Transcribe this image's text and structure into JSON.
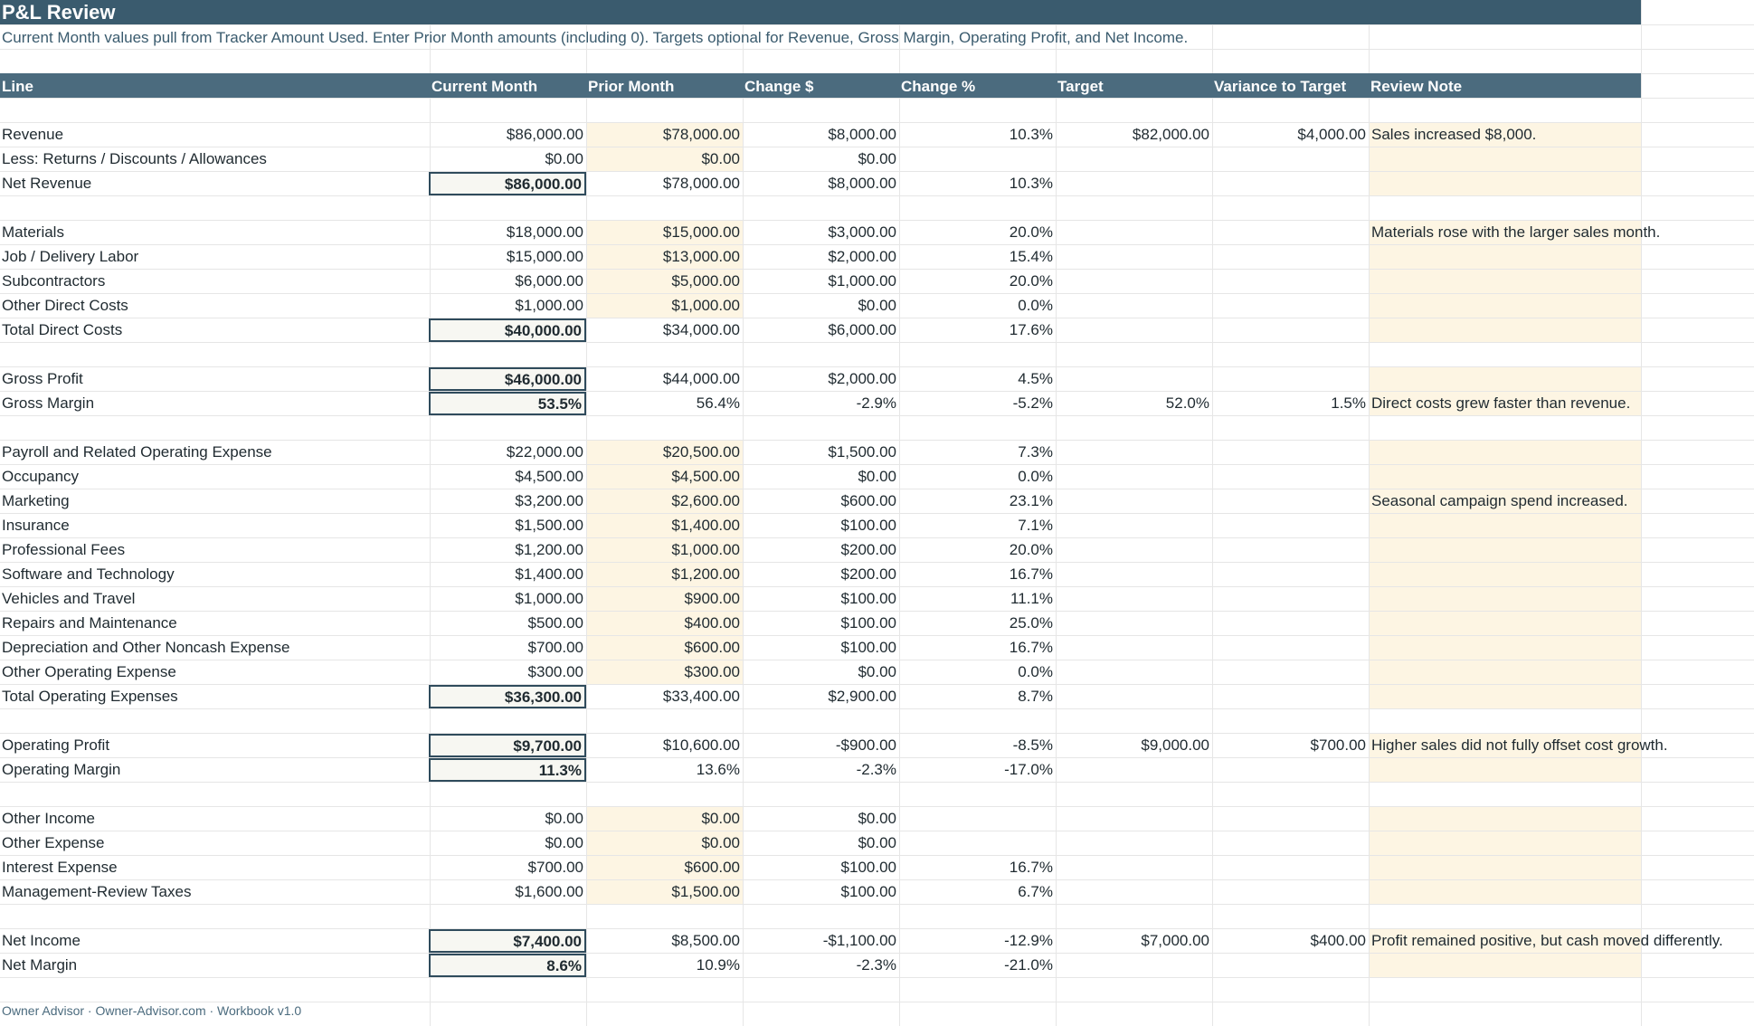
{
  "title": "P&L Review",
  "subtitle": "Current Month values pull from Tracker Amount Used. Enter Prior Month amounts (including 0). Targets optional for Revenue, Gross Margin, Operating Profit, and Net Income.",
  "headers": [
    "Line",
    "Current Month",
    "Prior Month",
    "Change $",
    "Change %",
    "Target",
    "Variance to Target",
    "Review Note"
  ],
  "rows": [
    {
      "row": 5,
      "label": "Revenue",
      "current": "$86,000.00",
      "prior": "$78,000.00",
      "change": "$8,000.00",
      "pct": "10.3%",
      "target": "$82,000.00",
      "variance": "$4,000.00",
      "note": "Sales increased $8,000.",
      "priorInput": true,
      "noteInput": true
    },
    {
      "row": 6,
      "label": "Less: Returns / Discounts / Allowances",
      "current": "$0.00",
      "prior": "$0.00",
      "change": "$0.00",
      "pct": "",
      "target": "",
      "variance": "",
      "note": "",
      "priorInput": true,
      "noteInput": true
    },
    {
      "row": 7,
      "label": "Net Revenue",
      "current": "$86,000.00",
      "prior": "$78,000.00",
      "change": "$8,000.00",
      "pct": "10.3%",
      "target": "",
      "variance": "",
      "note": "",
      "boxed": true,
      "noteInput": true
    },
    {
      "row": 9,
      "label": "Materials",
      "current": "$18,000.00",
      "prior": "$15,000.00",
      "change": "$3,000.00",
      "pct": "20.0%",
      "target": "",
      "variance": "",
      "note": "Materials rose with the larger sales month.",
      "priorInput": true,
      "noteInput": true
    },
    {
      "row": 10,
      "label": "Job / Delivery Labor",
      "current": "$15,000.00",
      "prior": "$13,000.00",
      "change": "$2,000.00",
      "pct": "15.4%",
      "target": "",
      "variance": "",
      "note": "",
      "priorInput": true,
      "noteInput": true
    },
    {
      "row": 11,
      "label": "Subcontractors",
      "current": "$6,000.00",
      "prior": "$5,000.00",
      "change": "$1,000.00",
      "pct": "20.0%",
      "target": "",
      "variance": "",
      "note": "",
      "priorInput": true,
      "noteInput": true
    },
    {
      "row": 12,
      "label": "Other Direct Costs",
      "current": "$1,000.00",
      "prior": "$1,000.00",
      "change": "$0.00",
      "pct": "0.0%",
      "target": "",
      "variance": "",
      "note": "",
      "priorInput": true,
      "noteInput": true
    },
    {
      "row": 13,
      "label": "Total Direct Costs",
      "current": "$40,000.00",
      "prior": "$34,000.00",
      "change": "$6,000.00",
      "pct": "17.6%",
      "target": "",
      "variance": "",
      "note": "",
      "boxed": true,
      "noteInput": true
    },
    {
      "row": 15,
      "label": "Gross Profit",
      "current": "$46,000.00",
      "prior": "$44,000.00",
      "change": "$2,000.00",
      "pct": "4.5%",
      "target": "",
      "variance": "",
      "note": "",
      "boxed": true,
      "noteInput": true
    },
    {
      "row": 16,
      "label": "Gross Margin",
      "current": "53.5%",
      "prior": "56.4%",
      "change": "-2.9%",
      "pct": "-5.2%",
      "target": "52.0%",
      "variance": "1.5%",
      "note": "Direct costs grew faster than revenue.",
      "boxed": true,
      "noteInput": true
    },
    {
      "row": 18,
      "label": "Payroll and Related Operating Expense",
      "current": "$22,000.00",
      "prior": "$20,500.00",
      "change": "$1,500.00",
      "pct": "7.3%",
      "target": "",
      "variance": "",
      "note": "",
      "priorInput": true,
      "noteInput": true
    },
    {
      "row": 19,
      "label": "Occupancy",
      "current": "$4,500.00",
      "prior": "$4,500.00",
      "change": "$0.00",
      "pct": "0.0%",
      "target": "",
      "variance": "",
      "note": "",
      "priorInput": true,
      "noteInput": true
    },
    {
      "row": 20,
      "label": "Marketing",
      "current": "$3,200.00",
      "prior": "$2,600.00",
      "change": "$600.00",
      "pct": "23.1%",
      "target": "",
      "variance": "",
      "note": "Seasonal campaign spend increased.",
      "priorInput": true,
      "noteInput": true
    },
    {
      "row": 21,
      "label": "Insurance",
      "current": "$1,500.00",
      "prior": "$1,400.00",
      "change": "$100.00",
      "pct": "7.1%",
      "target": "",
      "variance": "",
      "note": "",
      "priorInput": true,
      "noteInput": true
    },
    {
      "row": 22,
      "label": "Professional Fees",
      "current": "$1,200.00",
      "prior": "$1,000.00",
      "change": "$200.00",
      "pct": "20.0%",
      "target": "",
      "variance": "",
      "note": "",
      "priorInput": true,
      "noteInput": true
    },
    {
      "row": 23,
      "label": "Software and Technology",
      "current": "$1,400.00",
      "prior": "$1,200.00",
      "change": "$200.00",
      "pct": "16.7%",
      "target": "",
      "variance": "",
      "note": "",
      "priorInput": true,
      "noteInput": true
    },
    {
      "row": 24,
      "label": "Vehicles and Travel",
      "current": "$1,000.00",
      "prior": "$900.00",
      "change": "$100.00",
      "pct": "11.1%",
      "target": "",
      "variance": "",
      "note": "",
      "priorInput": true,
      "noteInput": true
    },
    {
      "row": 25,
      "label": "Repairs and Maintenance",
      "current": "$500.00",
      "prior": "$400.00",
      "change": "$100.00",
      "pct": "25.0%",
      "target": "",
      "variance": "",
      "note": "",
      "priorInput": true,
      "noteInput": true
    },
    {
      "row": 26,
      "label": "Depreciation and Other Noncash Expense",
      "current": "$700.00",
      "prior": "$600.00",
      "change": "$100.00",
      "pct": "16.7%",
      "target": "",
      "variance": "",
      "note": "",
      "priorInput": true,
      "noteInput": true
    },
    {
      "row": 27,
      "label": "Other Operating Expense",
      "current": "$300.00",
      "prior": "$300.00",
      "change": "$0.00",
      "pct": "0.0%",
      "target": "",
      "variance": "",
      "note": "",
      "priorInput": true,
      "noteInput": true
    },
    {
      "row": 28,
      "label": "Total Operating Expenses",
      "current": "$36,300.00",
      "prior": "$33,400.00",
      "change": "$2,900.00",
      "pct": "8.7%",
      "target": "",
      "variance": "",
      "note": "",
      "boxed": true,
      "noteInput": true
    },
    {
      "row": 30,
      "label": "Operating Profit",
      "current": "$9,700.00",
      "prior": "$10,600.00",
      "change": "-$900.00",
      "pct": "-8.5%",
      "target": "$9,000.00",
      "variance": "$700.00",
      "note": "Higher sales did not fully offset cost growth.",
      "boxed": true,
      "noteInput": true
    },
    {
      "row": 31,
      "label": "Operating Margin",
      "current": "11.3%",
      "prior": "13.6%",
      "change": "-2.3%",
      "pct": "-17.0%",
      "target": "",
      "variance": "",
      "note": "",
      "boxed": true,
      "noteInput": true
    },
    {
      "row": 33,
      "label": "Other Income",
      "current": "$0.00",
      "prior": "$0.00",
      "change": "$0.00",
      "pct": "",
      "target": "",
      "variance": "",
      "note": "",
      "priorInput": true,
      "noteInput": true
    },
    {
      "row": 34,
      "label": "Other Expense",
      "current": "$0.00",
      "prior": "$0.00",
      "change": "$0.00",
      "pct": "",
      "target": "",
      "variance": "",
      "note": "",
      "priorInput": true,
      "noteInput": true
    },
    {
      "row": 35,
      "label": "Interest Expense",
      "current": "$700.00",
      "prior": "$600.00",
      "change": "$100.00",
      "pct": "16.7%",
      "target": "",
      "variance": "",
      "note": "",
      "priorInput": true,
      "noteInput": true
    },
    {
      "row": 36,
      "label": "Management-Review Taxes",
      "current": "$1,600.00",
      "prior": "$1,500.00",
      "change": "$100.00",
      "pct": "6.7%",
      "target": "",
      "variance": "",
      "note": "",
      "priorInput": true,
      "noteInput": true
    },
    {
      "row": 38,
      "label": "Net Income",
      "current": "$7,400.00",
      "prior": "$8,500.00",
      "change": "-$1,100.00",
      "pct": "-12.9%",
      "target": "$7,000.00",
      "variance": "$400.00",
      "note": "Profit remained positive, but cash moved differently.",
      "boxed": true,
      "noteInput": true
    },
    {
      "row": 39,
      "label": "Net Margin",
      "current": "8.6%",
      "prior": "10.9%",
      "change": "-2.3%",
      "pct": "-21.0%",
      "target": "",
      "variance": "",
      "note": "",
      "boxed": true,
      "noteInput": true
    }
  ],
  "footer": "Owner Advisor · Owner-Advisor.com · Workbook v1.0",
  "colors": {
    "title_bg": "#3a5b6e",
    "header_bg": "#4b6b7e",
    "input_fill": "#fdf5e3",
    "box_border": "#2f4b5c"
  }
}
